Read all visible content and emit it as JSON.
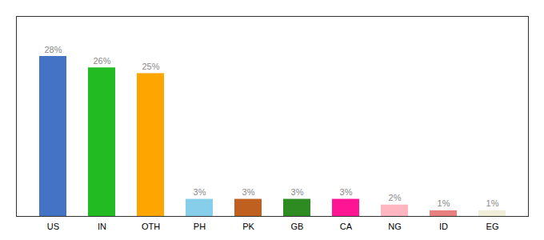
{
  "chart_data": {
    "type": "bar",
    "categories": [
      "US",
      "IN",
      "OTH",
      "PH",
      "PK",
      "GB",
      "CA",
      "NG",
      "ID",
      "EG"
    ],
    "values": [
      28,
      26,
      25,
      3,
      3,
      3,
      3,
      2,
      1,
      1
    ],
    "value_labels": [
      "28%",
      "26%",
      "25%",
      "3%",
      "3%",
      "3%",
      "3%",
      "2%",
      "1%",
      "1%"
    ],
    "colors": [
      "#4472C4",
      "#22BB22",
      "#FFA500",
      "#87CEEB",
      "#C06020",
      "#2E8B22",
      "#FF1493",
      "#FFB6C1",
      "#E88080",
      "#F0EDD8"
    ],
    "ylim": [
      0,
      35
    ],
    "data_labels": true,
    "tick_labels": "x",
    "grid": false
  }
}
